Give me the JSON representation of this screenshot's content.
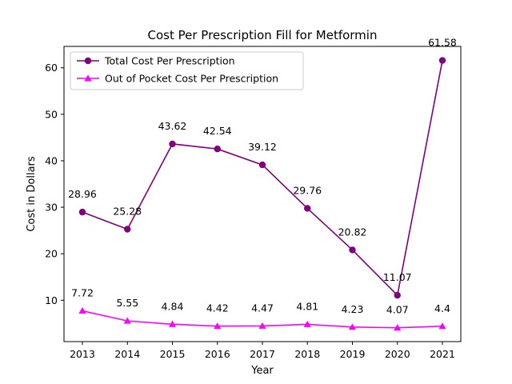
{
  "chart_data": {
    "type": "line",
    "title": "Cost Per Prescription Fill for Metformin",
    "xlabel": "Year",
    "ylabel": "Cost in Dollars",
    "x": [
      "2013",
      "2014",
      "2015",
      "2016",
      "2017",
      "2018",
      "2019",
      "2020",
      "2021"
    ],
    "ylim": [
      1.1,
      64.6
    ],
    "yticks": [
      10,
      20,
      30,
      40,
      50,
      60
    ],
    "grid": false,
    "legend_position": "top-left",
    "series": [
      {
        "name": "Total Cost Per Prescription",
        "color": "#800080",
        "marker": "circle",
        "values": [
          28.96,
          25.28,
          43.62,
          42.54,
          39.12,
          29.76,
          20.82,
          11.07,
          61.58
        ],
        "labels": [
          "28.96",
          "25.28",
          "43.62",
          "42.54",
          "39.12",
          "29.76",
          "20.82",
          "11.07",
          "61.58"
        ]
      },
      {
        "name": "Out of Pocket Cost Per Prescription",
        "color": "#ff00ff",
        "marker": "triangle",
        "values": [
          7.72,
          5.55,
          4.84,
          4.42,
          4.47,
          4.81,
          4.23,
          4.07,
          4.4
        ],
        "labels": [
          "7.72",
          "5.55",
          "4.84",
          "4.42",
          "4.47",
          "4.81",
          "4.23",
          "4.07",
          "4.4"
        ]
      }
    ]
  }
}
